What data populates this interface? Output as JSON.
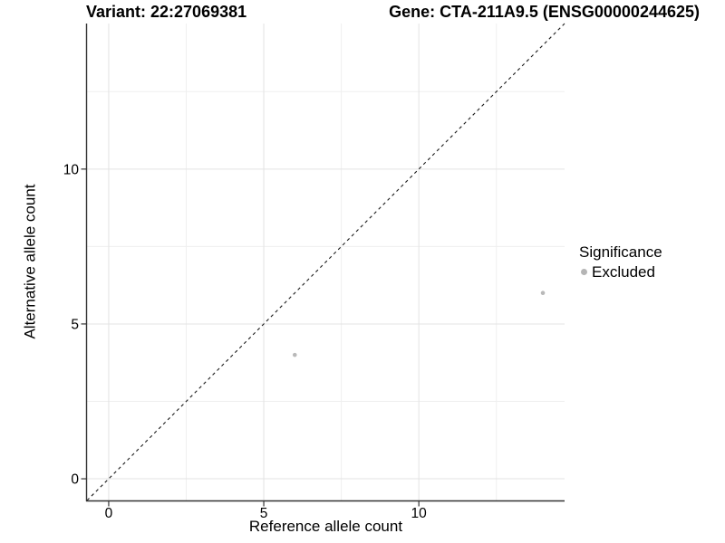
{
  "chart_data": {
    "type": "scatter",
    "titles": {
      "left": "Variant: 22:27069381",
      "right": "Gene: CTA-211A9.5 (ENSG00000244625)"
    },
    "xlabel": "Reference allele count",
    "ylabel": "Alternative allele count",
    "xlim": [
      -0.7,
      14.7
    ],
    "ylim": [
      -0.7,
      14.7
    ],
    "x_major_ticks": [
      0,
      5,
      10
    ],
    "y_major_ticks": [
      0,
      5,
      10
    ],
    "x_minor_gridlines": [
      2.5,
      7.5,
      12.5
    ],
    "y_minor_gridlines": [
      2.5,
      7.5,
      12.5
    ],
    "grid": "major and minor gridlines, light gray on white panel",
    "series": [
      {
        "name": "Excluded",
        "color": "#b9b9b9",
        "points": [
          {
            "x": 6,
            "y": 4
          },
          {
            "x": 14,
            "y": 6
          }
        ]
      }
    ],
    "reference_line": {
      "type": "identity y=x",
      "style": "dashed",
      "color": "#1a1a1a"
    },
    "legend": {
      "title": "Significance",
      "position": "right",
      "items": [
        {
          "label": "Excluded",
          "marker": "circle",
          "color": "#b5b5b5"
        }
      ]
    }
  },
  "colors": {
    "background": "#ffffff",
    "grid_major": "#e3e3e3",
    "grid_minor": "#efefef",
    "axis_line": "#333333",
    "text": "#000000"
  }
}
